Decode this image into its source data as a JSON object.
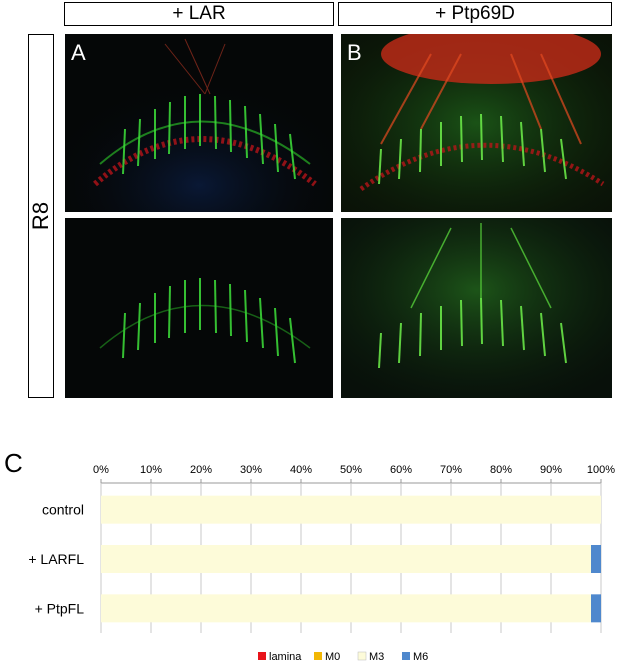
{
  "headers": {
    "left": "+ LAR",
    "right": "+ Ptp69D"
  },
  "side_label": "R8",
  "panel_labels": {
    "a": "A",
    "b": "B"
  },
  "figure_label": "C",
  "colors": {
    "lamina": "#e8141b",
    "M0": "#f2b705",
    "M3": "#fdfbd9",
    "M6": "#4f88cd"
  },
  "chart_data": {
    "type": "bar",
    "orientation": "horizontal",
    "stacked": true,
    "percent_axis": true,
    "x_ticks": [
      "0%",
      "10%",
      "20%",
      "30%",
      "40%",
      "50%",
      "60%",
      "70%",
      "80%",
      "90%",
      "100%"
    ],
    "xlim": [
      0,
      100
    ],
    "axis_position": "top",
    "categories": [
      "control",
      "+ LARFL",
      "+ PtpFL"
    ],
    "series": [
      {
        "name": "lamina",
        "values": [
          0,
          0,
          0
        ]
      },
      {
        "name": "M0",
        "values": [
          0,
          0,
          0
        ]
      },
      {
        "name": "M3",
        "values": [
          100,
          98,
          98
        ]
      },
      {
        "name": "M6",
        "values": [
          0,
          2,
          2
        ]
      }
    ],
    "legend_position": "bottom"
  }
}
